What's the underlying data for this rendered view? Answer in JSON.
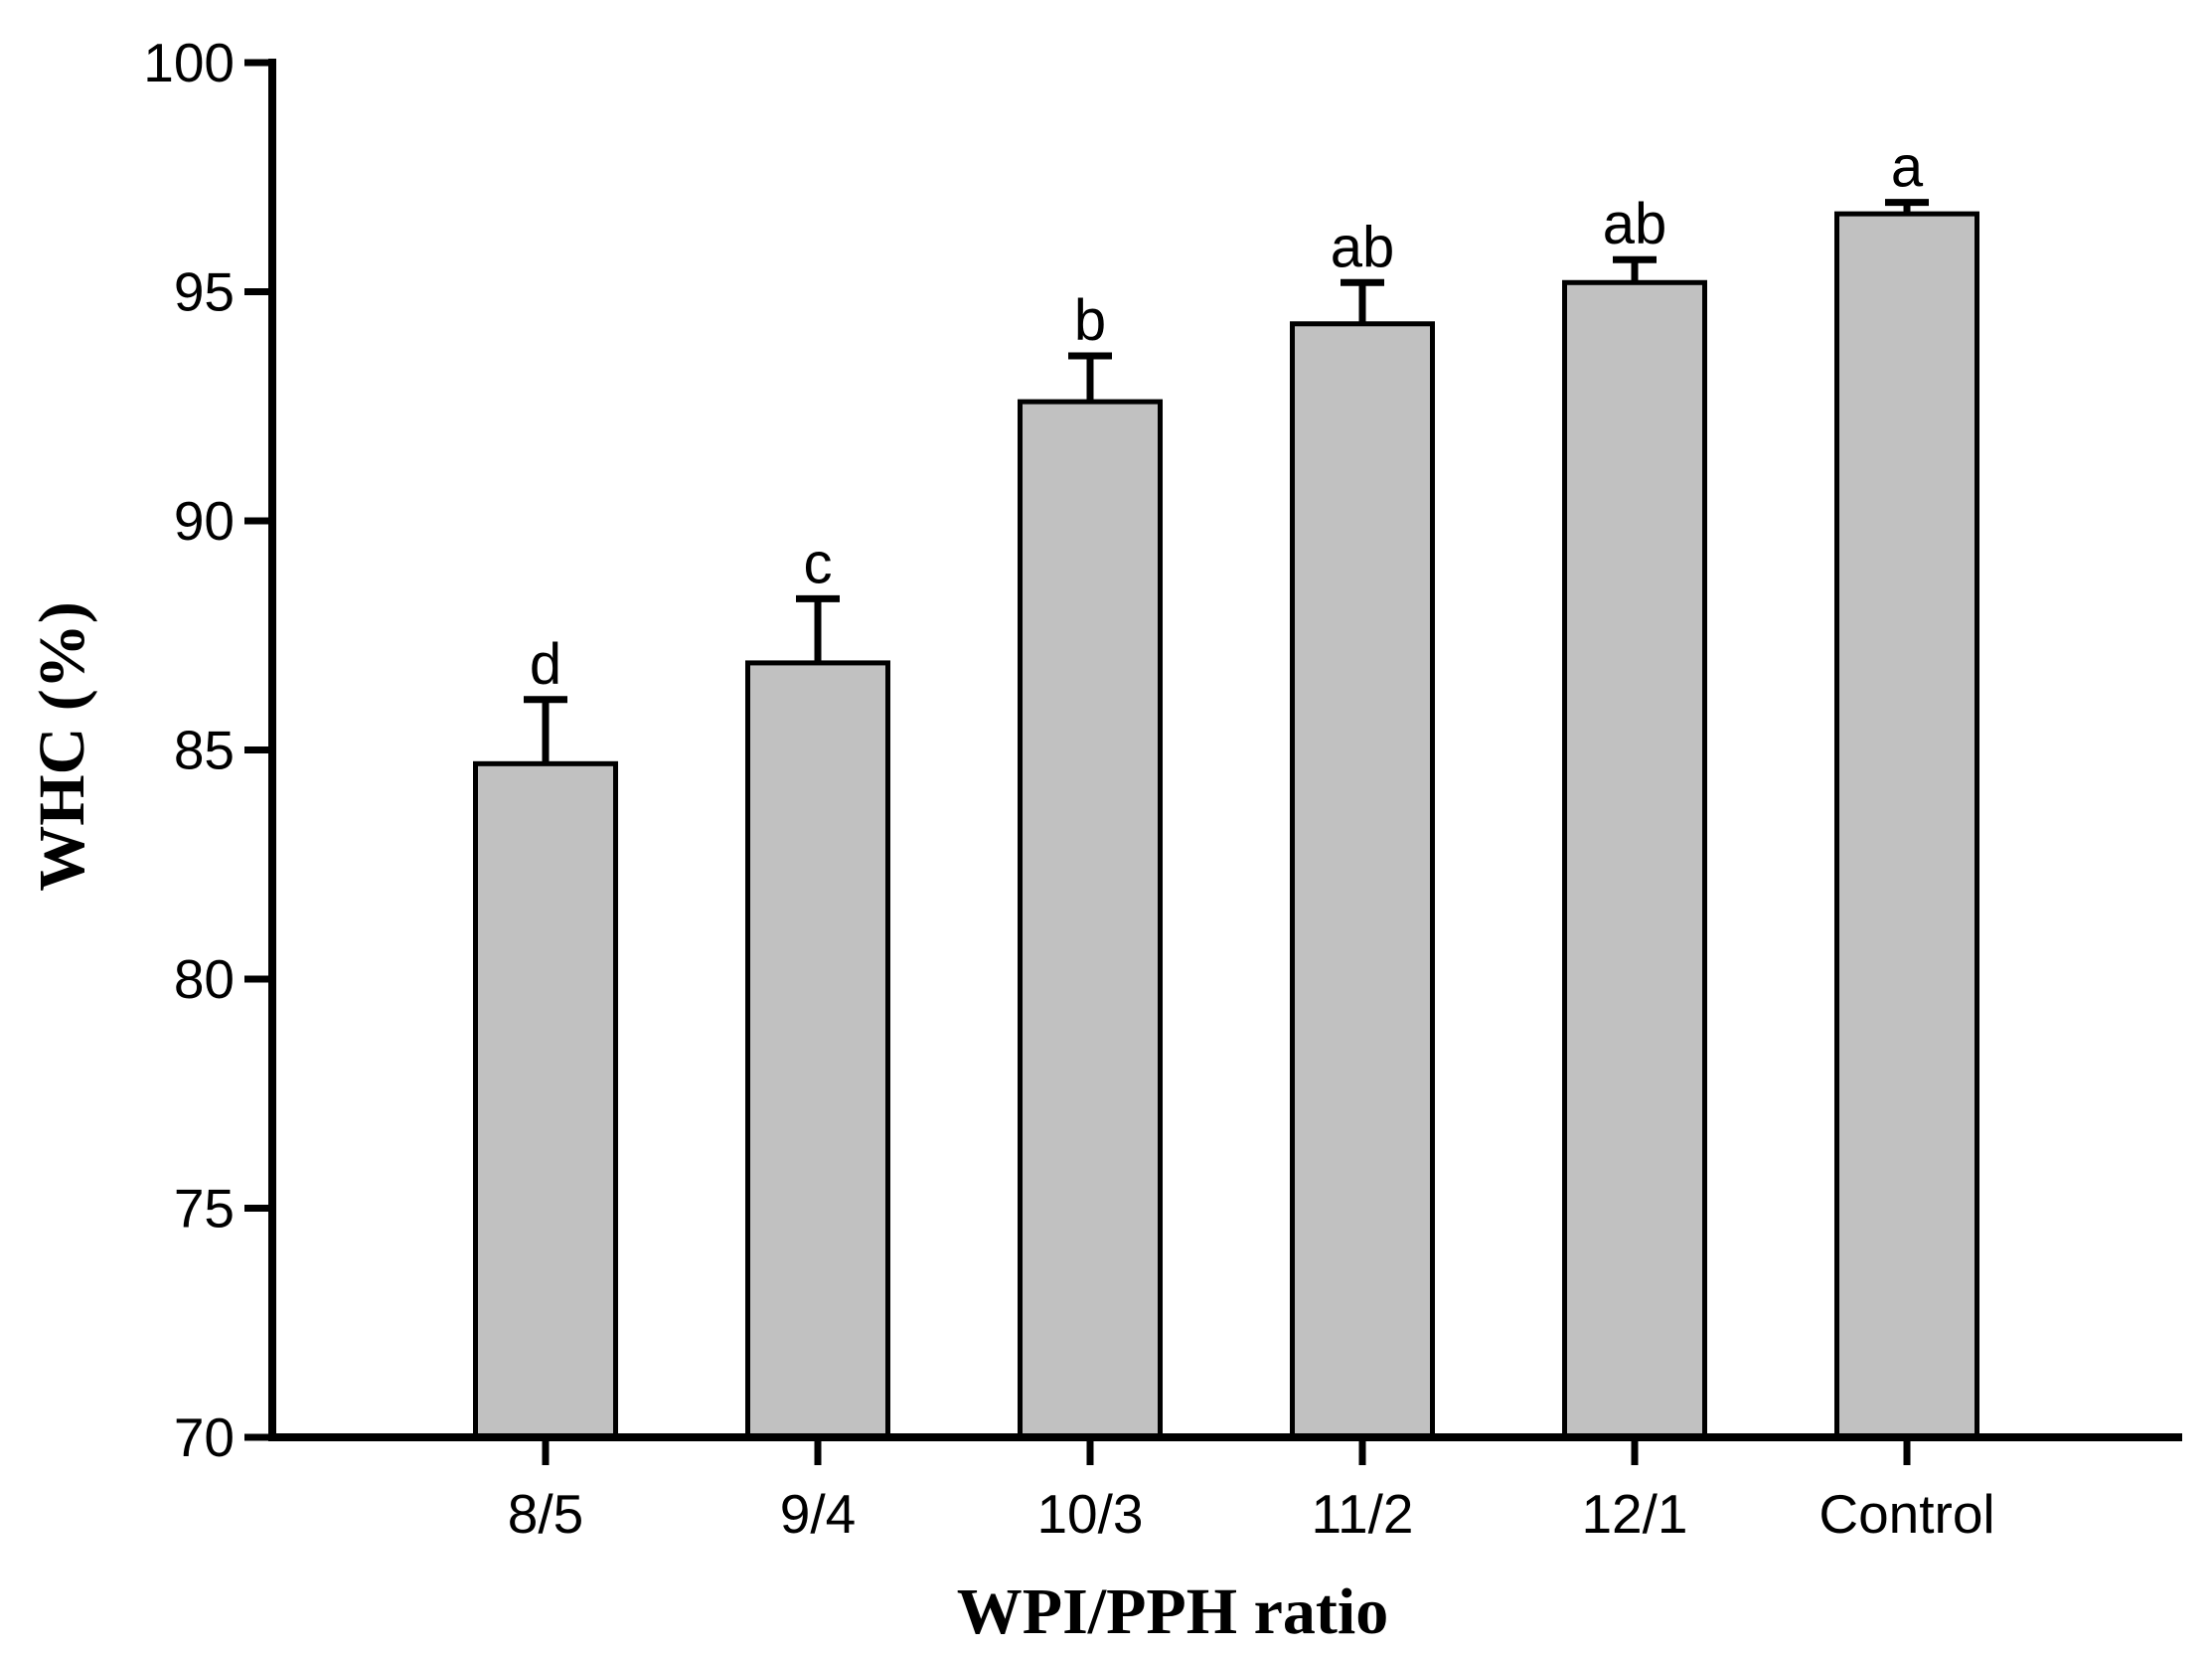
{
  "chart_data": {
    "type": "bar",
    "title": "",
    "xlabel": "WPI/PPH ratio",
    "ylabel": "WHC (%)",
    "categories": [
      "8/5",
      "9/4",
      "10/3",
      "11/2",
      "12/1",
      "Control"
    ],
    "values": [
      84.7,
      86.9,
      92.6,
      94.3,
      95.2,
      96.7
    ],
    "error_plus": [
      1.4,
      1.4,
      1.0,
      0.9,
      0.5,
      0.25
    ],
    "significance_letters": [
      "d",
      "c",
      "b",
      "ab",
      "ab",
      "a"
    ],
    "ylim": [
      70,
      100
    ],
    "yticks": [
      70,
      75,
      80,
      85,
      90,
      95,
      100
    ],
    "grid": "off",
    "legend": "none",
    "bar_fill_color": "#c1c1c1",
    "bar_border_color": "#000000",
    "axis_color": "#000000",
    "text_color": "#000000",
    "background_color": "#ffffff"
  }
}
